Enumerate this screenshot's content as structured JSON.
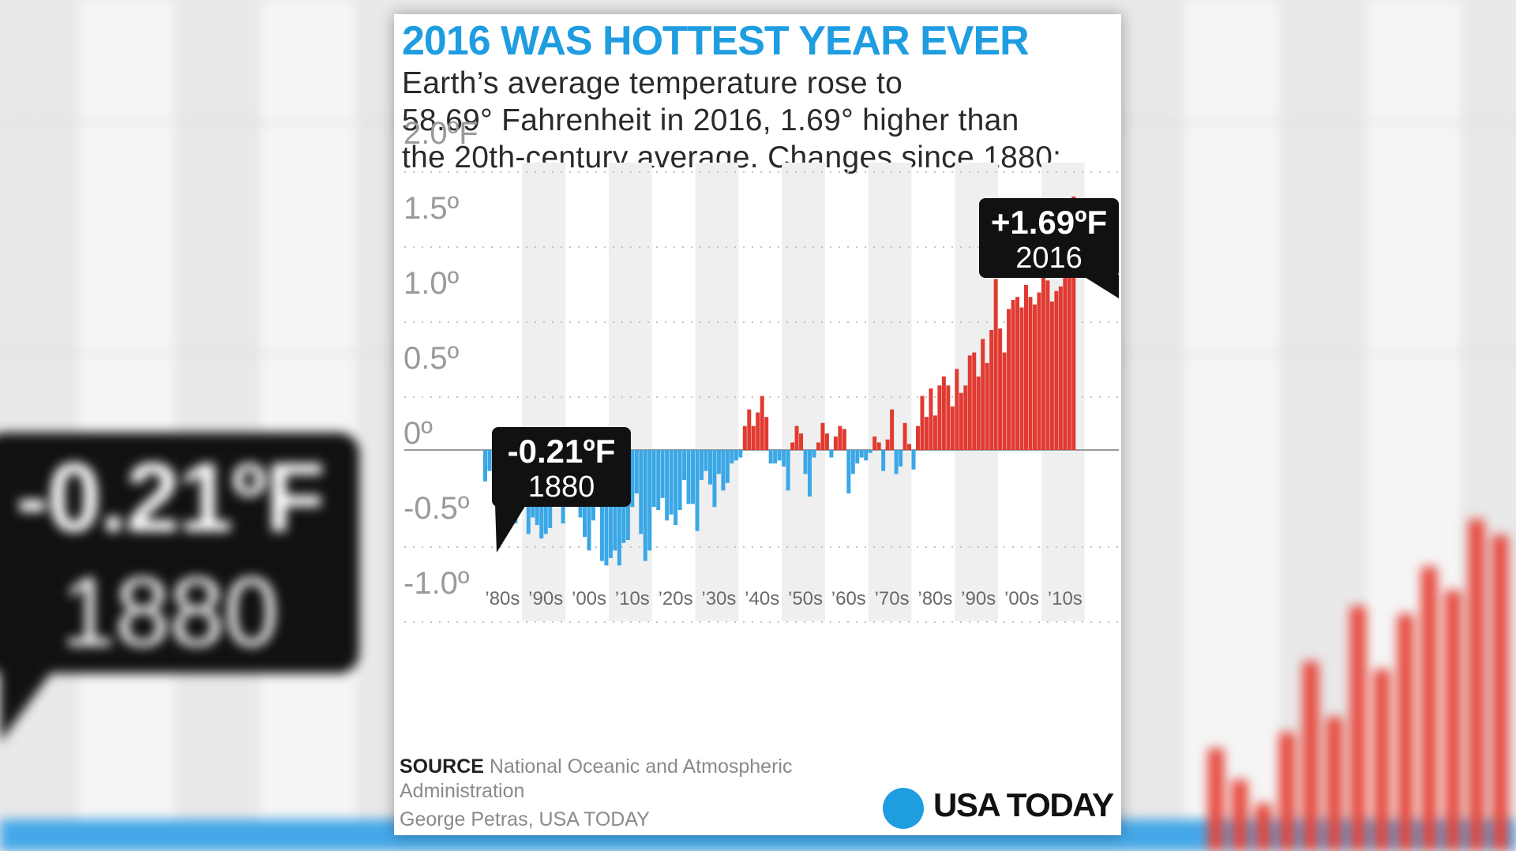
{
  "title": "2016 WAS HOTTEST YEAR EVER",
  "subtitle_lines": [
    "Earth’s average temperature rose to",
    "58.69° Fahrenheit in 2016, 1.69° higher than",
    "the 20th-century average. Changes since 1880:"
  ],
  "callouts": {
    "first": {
      "value": "-0.21ºF",
      "year": "1880"
    },
    "last": {
      "value": "+1.69ºF",
      "year": "2016"
    }
  },
  "source": {
    "label": "SOURCE",
    "text": "National Oceanic and Atmospheric Administration"
  },
  "credit": "George Petras, USA TODAY",
  "logo": "USA TODAY",
  "colors": {
    "title": "#1f9de1",
    "positive": "#e03a31",
    "negative": "#3aa7e6",
    "decade_shade": "#efefef",
    "logo": "#1f9de1"
  },
  "chart_data": {
    "type": "bar",
    "title": "2016 WAS HOTTEST YEAR EVER",
    "x_start_year": 1880,
    "x_end_year": 2016,
    "ylim": [
      -1.0,
      2.0
    ],
    "y_ticks": [
      {
        "value": 2.0,
        "label": "2.0ºF"
      },
      {
        "value": 1.5,
        "label": "1.5º"
      },
      {
        "value": 1.0,
        "label": "1.0º"
      },
      {
        "value": 0.5,
        "label": "0.5º"
      },
      {
        "value": 0,
        "label": "0º"
      },
      {
        "value": -0.5,
        "label": "-0.5º"
      },
      {
        "value": -1.0,
        "label": "-1.0º"
      }
    ],
    "x_tick_labels": [
      "’80s",
      "’90s",
      "’00s",
      "’10s",
      "’20s",
      "’30s",
      "’40s",
      "’50s",
      "’60s",
      "’70s",
      "’80s",
      "’90s",
      "’00s",
      "’10s"
    ],
    "grid": "dotted horizontal",
    "shaded_decades": "alternating",
    "values": [
      -0.21,
      -0.14,
      -0.16,
      -0.3,
      -0.41,
      -0.41,
      -0.38,
      -0.49,
      -0.27,
      -0.22,
      -0.56,
      -0.45,
      -0.5,
      -0.59,
      -0.56,
      -0.52,
      -0.32,
      -0.26,
      -0.49,
      -0.29,
      -0.22,
      -0.27,
      -0.45,
      -0.58,
      -0.67,
      -0.47,
      -0.38,
      -0.74,
      -0.77,
      -0.72,
      -0.67,
      -0.77,
      -0.62,
      -0.6,
      -0.38,
      -0.29,
      -0.56,
      -0.74,
      -0.67,
      -0.38,
      -0.4,
      -0.32,
      -0.47,
      -0.43,
      -0.5,
      -0.4,
      -0.2,
      -0.36,
      -0.36,
      -0.54,
      -0.2,
      -0.14,
      -0.23,
      -0.38,
      -0.16,
      -0.27,
      -0.22,
      -0.09,
      -0.07,
      -0.05,
      0.16,
      0.27,
      0.16,
      0.25,
      0.36,
      0.22,
      -0.09,
      -0.09,
      -0.07,
      -0.11,
      -0.27,
      0.05,
      0.16,
      0.11,
      -0.16,
      -0.31,
      -0.05,
      0.05,
      0.18,
      0.11,
      -0.05,
      0.09,
      0.16,
      0.14,
      -0.29,
      -0.16,
      -0.09,
      -0.05,
      -0.07,
      -0.02,
      0.09,
      0.05,
      -0.14,
      0.07,
      0.27,
      -0.16,
      -0.11,
      0.18,
      0.04,
      -0.13,
      0.16,
      0.36,
      0.22,
      0.41,
      0.23,
      0.43,
      0.49,
      0.43,
      0.29,
      0.54,
      0.38,
      0.43,
      0.63,
      0.65,
      0.49,
      0.74,
      0.58,
      0.8,
      1.14,
      0.81,
      0.65,
      0.94,
      1.0,
      1.02,
      0.95,
      1.1,
      1.02,
      0.97,
      1.05,
      1.17,
      1.13,
      0.99,
      1.06,
      1.09,
      1.3,
      1.61,
      1.69
    ]
  }
}
